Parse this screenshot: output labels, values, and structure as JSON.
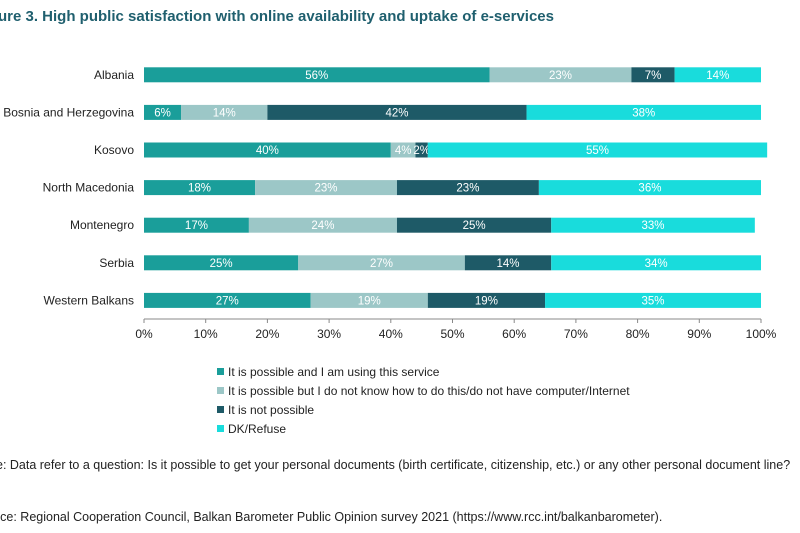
{
  "chart_data": {
    "type": "bar",
    "orientation": "horizontal",
    "stacked": true,
    "title": "ure 3. High public satisfaction with online availability and uptake of e-services",
    "categories": [
      "Albania",
      "Bosnia and Herzegovina",
      "Kosovo",
      "North Macedonia",
      "Montenegro",
      "Serbia",
      "Western Balkans"
    ],
    "series": [
      {
        "name": "It is possible and I am using this service",
        "color": "#1a9e9a",
        "values": [
          56,
          6,
          40,
          18,
          17,
          25,
          27
        ]
      },
      {
        "name": "It is possible but I do not know how to do this/do not have computer/Internet",
        "color": "#9cc7c7",
        "values": [
          23,
          14,
          4,
          23,
          24,
          27,
          19
        ]
      },
      {
        "name": "It is not possible",
        "color": "#1e5a67",
        "values": [
          7,
          42,
          2,
          23,
          25,
          14,
          19
        ]
      },
      {
        "name": "DK/Refuse",
        "color": "#19dcdc",
        "values": [
          14,
          38,
          55,
          36,
          33,
          34,
          35
        ]
      }
    ],
    "value_labels": [
      [
        "56%",
        "6%",
        "40%",
        "18%",
        "17%",
        "25%",
        "27%"
      ],
      [
        "23%",
        "14%",
        "4%",
        "23%",
        "24%",
        "27%",
        "19%"
      ],
      [
        "7%",
        "42%",
        "2%",
        "23%",
        "25%",
        "14%",
        "19%"
      ],
      [
        "14%",
        "38%",
        "55%",
        "36%",
        "33%",
        "34%",
        "35%"
      ]
    ],
    "xlim": [
      0,
      100
    ],
    "xticks": [
      "0%",
      "10%",
      "20%",
      "30%",
      "40%",
      "50%",
      "60%",
      "70%",
      "80%",
      "90%",
      "100%"
    ],
    "grid": false,
    "legend_position": "bottom"
  },
  "notes": {
    "note": "e: Data refer to a question: Is it possible to get your personal documents (birth certificate, citizenship, etc.) or any other personal document line?",
    "source": "rce: Regional Cooperation Council, Balkan Barometer Public Opinion survey 2021 (https://www.rcc.int/balkanbarometer)."
  }
}
